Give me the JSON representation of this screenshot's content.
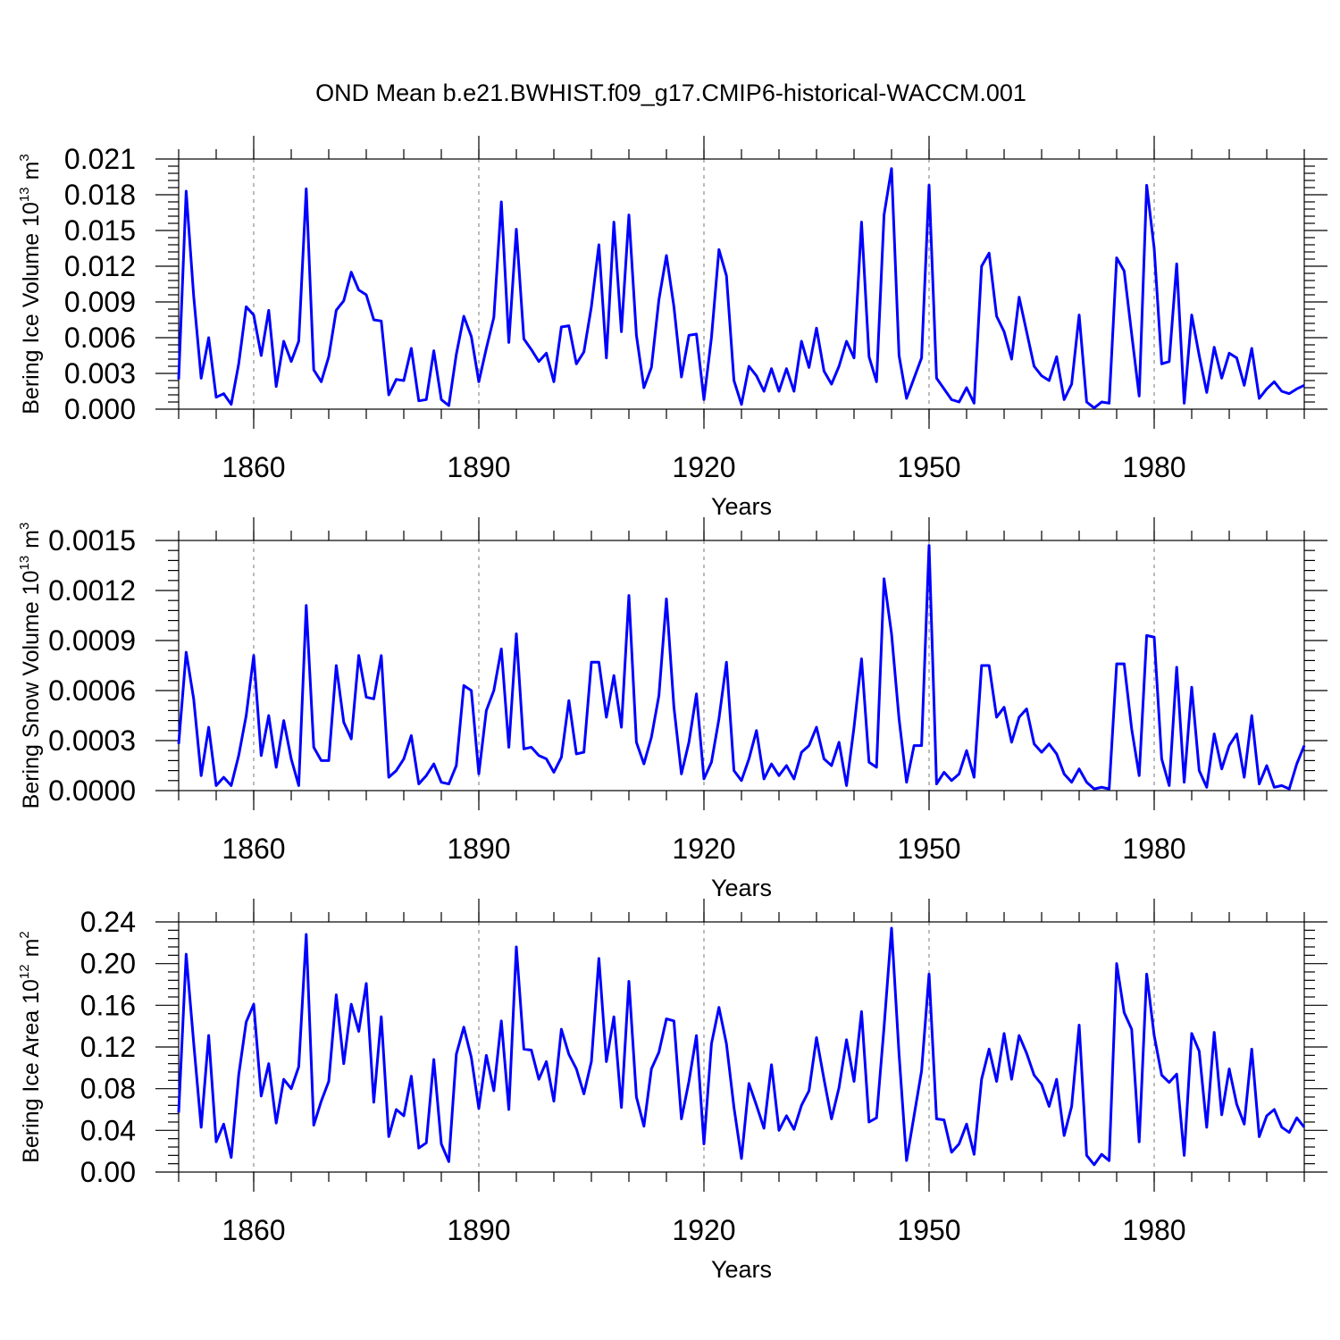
{
  "chart_data": {
    "type": "line",
    "title": "OND Mean b.e21.BWHIST.f09_g17.CMIP6-historical-WACCM.001",
    "x_start_year": 1850,
    "x_end_year": 2000,
    "xlim": [
      1850,
      2000
    ],
    "x_ticks": [
      1860,
      1890,
      1920,
      1950,
      1980
    ],
    "grid": "vertical dashed at major x ticks",
    "panels": [
      {
        "id": "ice-volume",
        "ylabel_main": "Bering Ice Volume 10",
        "ylabel_exp": "13",
        "ylabel_unit": "m",
        "ylabel_unit_exp": "3",
        "xlabel": "Years",
        "ylim": [
          0,
          0.021
        ],
        "yticks": [
          0,
          0.003,
          0.006,
          0.009,
          0.012,
          0.015,
          0.018,
          0.021
        ],
        "ytick_labels": [
          "0.000",
          "0.003",
          "0.006",
          "0.009",
          "0.012",
          "0.015",
          "0.018",
          "0.021"
        ],
        "xtick_labels": [
          "1860",
          "1890",
          "1920",
          "1950",
          "1980"
        ],
        "series": [
          {
            "name": "Bering Ice Volume",
            "color": "#0000ff",
            "values": [
              0.0025,
              0.0183,
              0.0095,
              0.0026,
              0.006,
              0.001,
              0.0013,
              0.0004,
              0.0038,
              0.0086,
              0.0079,
              0.0045,
              0.0083,
              0.0019,
              0.0057,
              0.004,
              0.0057,
              0.0185,
              0.0033,
              0.0023,
              0.0044,
              0.0083,
              0.0091,
              0.0115,
              0.01,
              0.0096,
              0.0075,
              0.0074,
              0.0012,
              0.0025,
              0.0024,
              0.0051,
              0.0007,
              0.0008,
              0.0049,
              0.0008,
              0.0003,
              0.0046,
              0.0078,
              0.0061,
              0.0023,
              0.0051,
              0.0077,
              0.0174,
              0.0056,
              0.0151,
              0.0059,
              0.005,
              0.004,
              0.0047,
              0.0023,
              0.0069,
              0.007,
              0.0038,
              0.0048,
              0.0086,
              0.0138,
              0.0043,
              0.0157,
              0.0065,
              0.0163,
              0.0062,
              0.0018,
              0.0035,
              0.0092,
              0.0129,
              0.0086,
              0.0027,
              0.0062,
              0.0063,
              0.0008,
              0.006,
              0.0134,
              0.0112,
              0.0024,
              0.0004,
              0.0036,
              0.0028,
              0.0015,
              0.0034,
              0.0015,
              0.0034,
              0.0015,
              0.0057,
              0.0035,
              0.0068,
              0.0032,
              0.0021,
              0.0036,
              0.0057,
              0.0043,
              0.0157,
              0.0044,
              0.0023,
              0.0163,
              0.0202,
              0.0045,
              0.0009,
              0.0026,
              0.0043,
              0.0188,
              0.0026,
              0.0017,
              0.0008,
              0.0006,
              0.0018,
              0.0005,
              0.012,
              0.0131,
              0.0078,
              0.0065,
              0.0042,
              0.0094,
              0.0065,
              0.0036,
              0.0028,
              0.0024,
              0.0044,
              0.0008,
              0.0021,
              0.0079,
              0.0006,
              0.0001,
              0.0006,
              0.0005,
              0.0127,
              0.0116,
              0.0063,
              0.0011,
              0.0188,
              0.0135,
              0.0038,
              0.004,
              0.0122,
              0.0005,
              0.0079,
              0.0045,
              0.0014,
              0.0052,
              0.0026,
              0.0047,
              0.0043,
              0.002,
              0.0051,
              0.0009,
              0.0017,
              0.0023,
              0.0015,
              0.0013,
              0.0017,
              0.002
            ]
          }
        ]
      },
      {
        "id": "snow-volume",
        "ylabel_main": "Bering Snow Volume 10",
        "ylabel_exp": "13",
        "ylabel_unit": "m",
        "ylabel_unit_exp": "3",
        "xlabel": "Years",
        "ylim": [
          0,
          0.0015
        ],
        "yticks": [
          0,
          0.0003,
          0.0006,
          0.0009,
          0.0012,
          0.0015
        ],
        "ytick_labels": [
          "0.0000",
          "0.0003",
          "0.0006",
          "0.0009",
          "0.0012",
          "0.0015"
        ],
        "xtick_labels": [
          "1860",
          "1890",
          "1920",
          "1950",
          "1980"
        ],
        "series": [
          {
            "name": "Bering Snow Volume",
            "color": "#0000ff",
            "values": [
              0.00028,
              0.00083,
              0.00055,
              9e-05,
              0.00038,
              3e-05,
              8e-05,
              3e-05,
              0.00021,
              0.00045,
              0.00081,
              0.00021,
              0.00045,
              0.00014,
              0.00042,
              0.00019,
              3e-05,
              0.00111,
              0.00026,
              0.00018,
              0.00018,
              0.00075,
              0.00041,
              0.00031,
              0.00081,
              0.00056,
              0.00055,
              0.00081,
              8e-05,
              0.00012,
              0.00019,
              0.00033,
              4e-05,
              9e-05,
              0.00016,
              5e-05,
              4e-05,
              0.00015,
              0.00063,
              0.0006,
              0.0001,
              0.00048,
              0.0006,
              0.00085,
              0.00026,
              0.00094,
              0.00025,
              0.00026,
              0.00021,
              0.00019,
              0.00011,
              0.0002,
              0.00054,
              0.00022,
              0.00023,
              0.00077,
              0.00077,
              0.00044,
              0.00069,
              0.00038,
              0.00117,
              0.00029,
              0.00016,
              0.00032,
              0.00057,
              0.00115,
              0.0005,
              0.0001,
              0.00029,
              0.00058,
              7e-05,
              0.00017,
              0.00043,
              0.00077,
              0.00012,
              6e-05,
              0.00019,
              0.00036,
              7e-05,
              0.00016,
              9e-05,
              0.00015,
              7e-05,
              0.00023,
              0.00027,
              0.00038,
              0.00019,
              0.00015,
              0.00029,
              3e-05,
              0.00038,
              0.00079,
              0.00017,
              0.00014,
              0.00127,
              0.00094,
              0.00043,
              5e-05,
              0.00027,
              0.00027,
              0.00147,
              4e-05,
              0.00011,
              6e-05,
              0.0001,
              0.00024,
              8e-05,
              0.00075,
              0.00075,
              0.00044,
              0.0005,
              0.00029,
              0.00044,
              0.00049,
              0.00028,
              0.00023,
              0.00028,
              0.00022,
              0.0001,
              5e-05,
              0.00013,
              5e-05,
              1e-05,
              2e-05,
              1e-05,
              0.00076,
              0.00076,
              0.00037,
              9e-05,
              0.00093,
              0.00092,
              0.00019,
              3e-05,
              0.00074,
              5e-05,
              0.00062,
              0.00012,
              2e-05,
              0.00034,
              0.00013,
              0.00027,
              0.00034,
              8e-05,
              0.00045,
              4e-05,
              0.00015,
              2e-05,
              3e-05,
              1e-05,
              0.00016,
              0.00027
            ]
          }
        ]
      },
      {
        "id": "ice-area",
        "ylabel_main": "Bering Ice Area 10",
        "ylabel_exp": "12",
        "ylabel_unit": "m",
        "ylabel_unit_exp": "2",
        "xlabel": "Years",
        "ylim": [
          0,
          0.24
        ],
        "yticks": [
          0,
          0.04,
          0.08,
          0.12,
          0.16,
          0.2,
          0.24
        ],
        "ytick_labels": [
          "0.00",
          "0.04",
          "0.08",
          "0.12",
          "0.16",
          "0.20",
          "0.24"
        ],
        "xtick_labels": [
          "1860",
          "1890",
          "1920",
          "1950",
          "1980"
        ],
        "series": [
          {
            "name": "Bering Ice Area",
            "color": "#0000ff",
            "values": [
              0.057,
              0.209,
              0.124,
              0.043,
              0.131,
              0.029,
              0.046,
              0.014,
              0.093,
              0.144,
              0.161,
              0.073,
              0.104,
              0.047,
              0.089,
              0.08,
              0.101,
              0.228,
              0.045,
              0.068,
              0.087,
              0.17,
              0.104,
              0.161,
              0.135,
              0.181,
              0.067,
              0.149,
              0.034,
              0.06,
              0.054,
              0.092,
              0.023,
              0.028,
              0.108,
              0.027,
              0.01,
              0.113,
              0.139,
              0.11,
              0.061,
              0.112,
              0.078,
              0.145,
              0.06,
              0.216,
              0.118,
              0.117,
              0.089,
              0.106,
              0.068,
              0.137,
              0.113,
              0.099,
              0.075,
              0.106,
              0.205,
              0.106,
              0.149,
              0.062,
              0.183,
              0.072,
              0.044,
              0.099,
              0.115,
              0.147,
              0.145,
              0.051,
              0.087,
              0.131,
              0.027,
              0.123,
              0.158,
              0.123,
              0.062,
              0.013,
              0.085,
              0.064,
              0.042,
              0.103,
              0.04,
              0.054,
              0.041,
              0.064,
              0.078,
              0.129,
              0.089,
              0.051,
              0.081,
              0.127,
              0.087,
              0.154,
              0.048,
              0.052,
              0.139,
              0.234,
              0.113,
              0.011,
              0.054,
              0.097,
              0.19,
              0.051,
              0.05,
              0.019,
              0.027,
              0.046,
              0.017,
              0.089,
              0.118,
              0.087,
              0.133,
              0.089,
              0.131,
              0.114,
              0.093,
              0.084,
              0.063,
              0.089,
              0.035,
              0.063,
              0.141,
              0.016,
              0.007,
              0.017,
              0.011,
              0.2,
              0.153,
              0.137,
              0.029,
              0.19,
              0.131,
              0.093,
              0.086,
              0.094,
              0.016,
              0.133,
              0.116,
              0.043,
              0.134,
              0.055,
              0.099,
              0.065,
              0.046,
              0.118,
              0.034,
              0.054,
              0.06,
              0.043,
              0.038,
              0.052,
              0.043
            ]
          }
        ]
      }
    ]
  }
}
